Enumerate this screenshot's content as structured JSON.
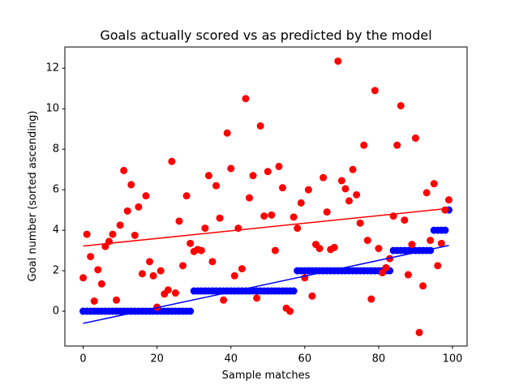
{
  "chart_data": {
    "type": "scatter",
    "title": "Goals actually scored vs as predicted by the model",
    "x_label": "Sample matches",
    "y_label": "Goal number (sorted ascending)",
    "x": [
      0,
      1,
      2,
      3,
      4,
      5,
      6,
      7,
      8,
      9,
      10,
      11,
      12,
      13,
      14,
      15,
      16,
      17,
      18,
      19,
      20,
      21,
      22,
      23,
      24,
      25,
      26,
      27,
      28,
      29,
      30,
      31,
      32,
      33,
      34,
      35,
      36,
      37,
      38,
      39,
      40,
      41,
      42,
      43,
      44,
      45,
      46,
      47,
      48,
      49,
      50,
      51,
      52,
      53,
      54,
      55,
      56,
      57,
      58,
      59,
      60,
      61,
      62,
      63,
      64,
      65,
      66,
      67,
      68,
      69,
      70,
      71,
      72,
      73,
      74,
      75,
      76,
      77,
      78,
      79,
      80,
      81,
      82,
      83,
      84,
      85,
      86,
      87,
      88,
      89,
      90,
      91,
      92,
      93,
      94,
      95,
      96,
      97,
      98,
      99
    ],
    "series": [
      {
        "color": "#0000ff",
        "values": [
          0,
          0,
          0,
          0,
          0,
          0,
          0,
          0,
          0,
          0,
          0,
          0,
          0,
          0,
          0,
          0,
          0,
          0,
          0,
          0,
          0,
          0,
          0,
          0,
          0,
          0,
          0,
          0,
          0,
          0,
          1,
          1,
          1,
          1,
          1,
          1,
          1,
          1,
          1,
          1,
          1,
          1,
          1,
          1,
          1,
          1,
          1,
          1,
          1,
          1,
          1,
          1,
          1,
          1,
          1,
          1,
          1,
          1,
          2,
          2,
          2,
          2,
          2,
          2,
          2,
          2,
          2,
          2,
          2,
          2,
          2,
          2,
          2,
          2,
          2,
          2,
          2,
          2,
          2,
          2,
          2,
          2,
          2,
          2,
          3,
          3,
          3,
          3,
          3,
          3,
          3,
          3,
          3,
          3,
          3,
          4,
          4,
          4,
          4,
          5
        ]
      },
      {
        "color": "#ff0000",
        "values": [
          1.65,
          3.8,
          2.7,
          0.5,
          2.05,
          1.35,
          3.2,
          3.45,
          3.8,
          0.55,
          4.25,
          6.95,
          4.95,
          6.25,
          3.75,
          5.15,
          1.85,
          5.7,
          2.45,
          1.75,
          0.2,
          2.0,
          0.85,
          1.05,
          7.4,
          0.9,
          4.45,
          2.25,
          5.7,
          3.35,
          2.95,
          3.05,
          3.0,
          4.1,
          6.7,
          2.45,
          6.2,
          4.6,
          0.55,
          8.8,
          7.05,
          1.75,
          4.1,
          2.1,
          10.5,
          5.6,
          6.7,
          0.65,
          9.15,
          4.7,
          6.9,
          4.75,
          3.0,
          7.15,
          6.1,
          0.15,
          0.0,
          4.65,
          4.1,
          5.35,
          1.65,
          6.0,
          0.75,
          3.3,
          3.1,
          6.6,
          4.9,
          3.05,
          3.15,
          12.35,
          6.45,
          6.05,
          5.45,
          7.0,
          5.75,
          4.35,
          8.2,
          3.5,
          0.6,
          10.9,
          3.1,
          1.9,
          2.15,
          2.6,
          4.7,
          8.2,
          10.15,
          4.5,
          1.8,
          3.3,
          8.55,
          -1.05,
          1.25,
          5.85,
          3.5,
          6.3,
          2.25,
          3.35,
          5.0,
          5.5
        ]
      }
    ],
    "lines": [
      {
        "color": "#0000ff",
        "x": [
          0,
          99
        ],
        "values": [
          -0.6,
          3.25
        ]
      },
      {
        "color": "#ff0000",
        "x": [
          0,
          99
        ],
        "values": [
          3.22,
          5.08
        ]
      }
    ],
    "xlim": [
      -4.95,
      103.95
    ],
    "ylim": [
      -1.72,
      13.05
    ],
    "xticks": [
      0,
      20,
      40,
      60,
      80,
      100
    ],
    "yticks": [
      0,
      2,
      4,
      6,
      8,
      10,
      12
    ]
  }
}
